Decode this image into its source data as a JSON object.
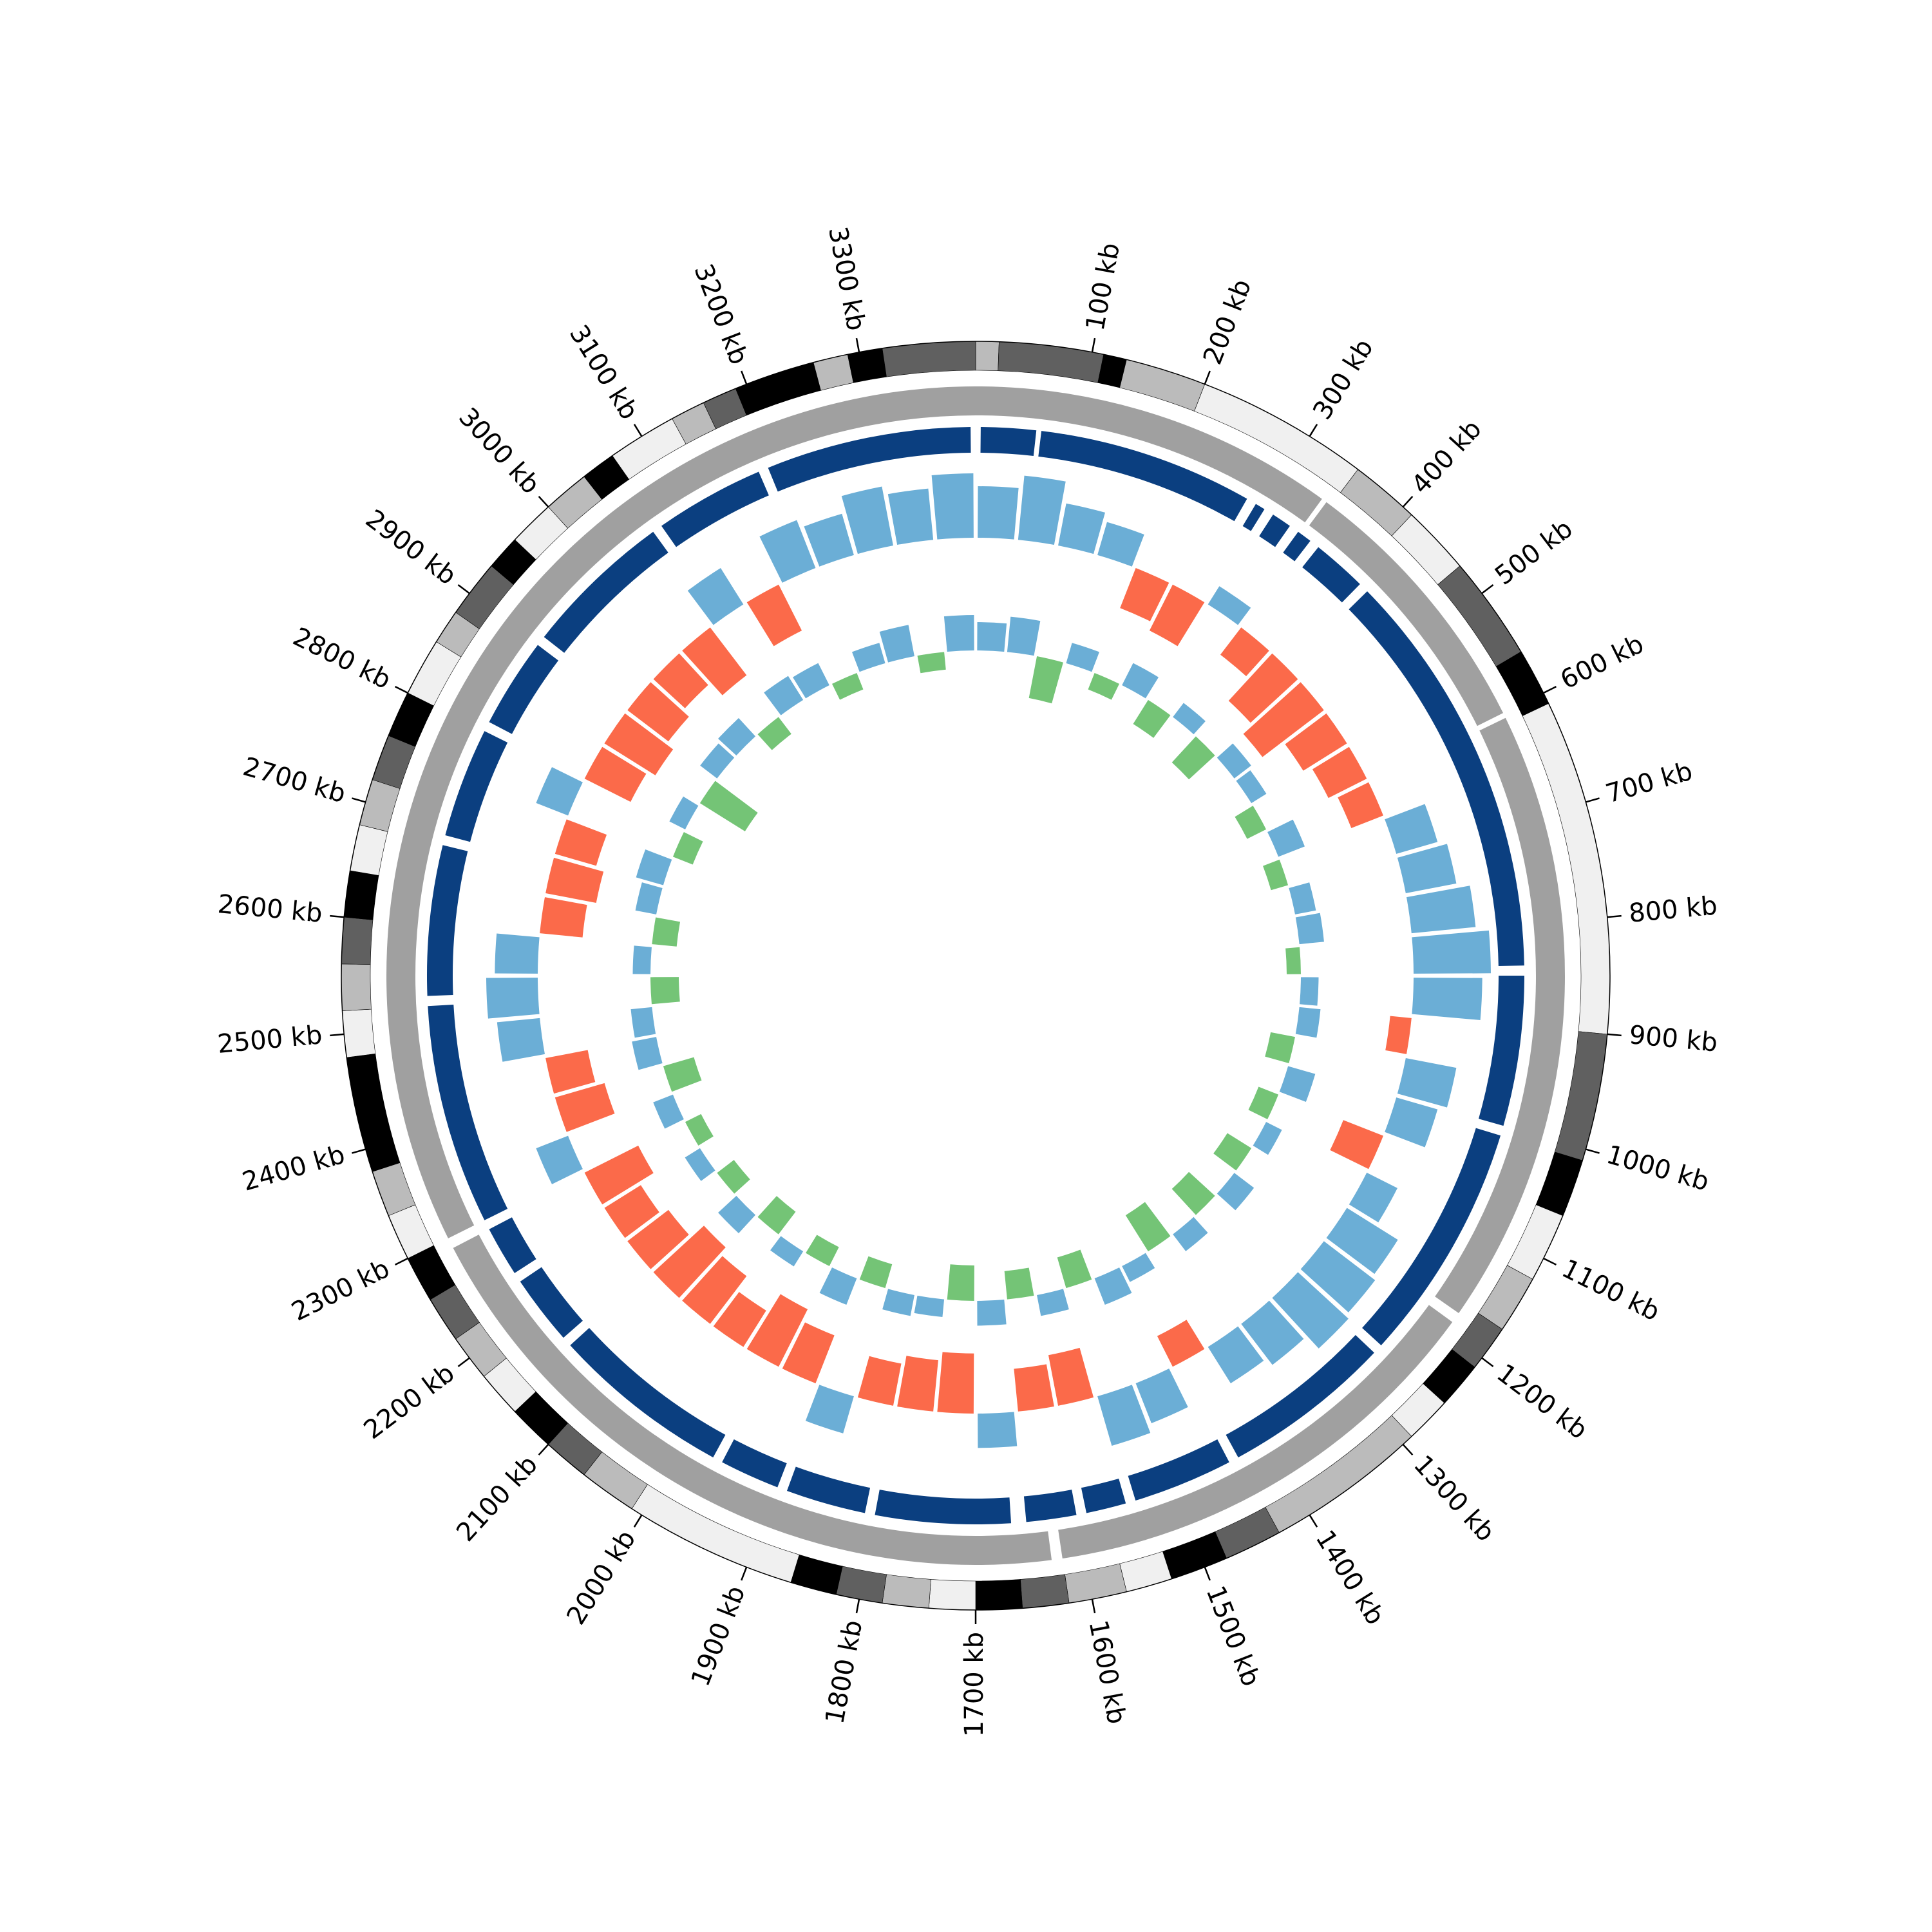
{
  "chart_data": {
    "type": "circos",
    "xlim": [
      0,
      3400
    ],
    "xticks": [
      {
        "value": 100,
        "label": "100 kb"
      },
      {
        "value": 200,
        "label": "200 kb"
      },
      {
        "value": 300,
        "label": "300 kb"
      },
      {
        "value": 400,
        "label": "400 kb"
      },
      {
        "value": 500,
        "label": "500 kb"
      },
      {
        "value": 600,
        "label": "600 kb"
      },
      {
        "value": 700,
        "label": "700 kb"
      },
      {
        "value": 800,
        "label": "800 kb"
      },
      {
        "value": 900,
        "label": "900 kb"
      },
      {
        "value": 1000,
        "label": "1000 kb"
      },
      {
        "value": 1100,
        "label": "1100 kb"
      },
      {
        "value": 1200,
        "label": "1200 kb"
      },
      {
        "value": 1300,
        "label": "1300 kb"
      },
      {
        "value": 1400,
        "label": "1400 kb"
      },
      {
        "value": 1500,
        "label": "1500 kb"
      },
      {
        "value": 1600,
        "label": "1600 kb"
      },
      {
        "value": 1700,
        "label": "1700 kb"
      },
      {
        "value": 1800,
        "label": "1800 kb"
      },
      {
        "value": 1900,
        "label": "1900 kb"
      },
      {
        "value": 2000,
        "label": "2000 kb"
      },
      {
        "value": 2100,
        "label": "2100 kb"
      },
      {
        "value": 2200,
        "label": "2200 kb"
      },
      {
        "value": 2300,
        "label": "2300 kb"
      },
      {
        "value": 2400,
        "label": "2400 kb"
      },
      {
        "value": 2500,
        "label": "2500 kb"
      },
      {
        "value": 2600,
        "label": "2600 kb"
      },
      {
        "value": 2700,
        "label": "2700 kb"
      },
      {
        "value": 2800,
        "label": "2800 kb"
      },
      {
        "value": 2900,
        "label": "2900 kb"
      },
      {
        "value": 3000,
        "label": "3000 kb"
      },
      {
        "value": 3100,
        "label": "3100 kb"
      },
      {
        "value": 3200,
        "label": "3200 kb"
      },
      {
        "value": 3300,
        "label": "3300 kb"
      }
    ],
    "bands": [
      [
        0,
        20,
        "#bbbbbb"
      ],
      [
        20,
        110,
        "#606060"
      ],
      [
        110,
        130,
        "#000000"
      ],
      [
        130,
        200,
        "#bbbbbb"
      ],
      [
        200,
        350,
        "#f0f0f0"
      ],
      [
        350,
        410,
        "#bbbbbb"
      ],
      [
        410,
        470,
        "#f0f0f0"
      ],
      [
        470,
        560,
        "#606060"
      ],
      [
        560,
        610,
        "#000000"
      ],
      [
        610,
        900,
        "#f0f0f0"
      ],
      [
        900,
        1010,
        "#606060"
      ],
      [
        1010,
        1060,
        "#000000"
      ],
      [
        1060,
        1120,
        "#f0f0f0"
      ],
      [
        1120,
        1170,
        "#bbbbbb"
      ],
      [
        1170,
        1210,
        "#606060"
      ],
      [
        1210,
        1250,
        "#000000"
      ],
      [
        1250,
        1290,
        "#f0f0f0"
      ],
      [
        1290,
        1430,
        "#bbbbbb"
      ],
      [
        1430,
        1480,
        "#606060"
      ],
      [
        1480,
        1530,
        "#000000"
      ],
      [
        1530,
        1570,
        "#f0f0f0"
      ],
      [
        1570,
        1620,
        "#bbbbbb"
      ],
      [
        1620,
        1660,
        "#606060"
      ],
      [
        1660,
        1700,
        "#000000"
      ],
      [
        1700,
        1740,
        "#f0f0f0"
      ],
      [
        1740,
        1780,
        "#bbbbbb"
      ],
      [
        1780,
        1820,
        "#606060"
      ],
      [
        1820,
        1860,
        "#000000"
      ],
      [
        1860,
        2010,
        "#f0f0f0"
      ],
      [
        2010,
        2060,
        "#bbbbbb"
      ],
      [
        2060,
        2100,
        "#606060"
      ],
      [
        2100,
        2140,
        "#000000"
      ],
      [
        2140,
        2180,
        "#f0f0f0"
      ],
      [
        2180,
        2220,
        "#bbbbbb"
      ],
      [
        2220,
        2260,
        "#606060"
      ],
      [
        2260,
        2300,
        "#000000"
      ],
      [
        2300,
        2340,
        "#f0f0f0"
      ],
      [
        2340,
        2380,
        "#bbbbbb"
      ],
      [
        2380,
        2480,
        "#000000"
      ],
      [
        2480,
        2520,
        "#f0f0f0"
      ],
      [
        2520,
        2560,
        "#bbbbbb"
      ],
      [
        2560,
        2600,
        "#606060"
      ],
      [
        2600,
        2640,
        "#000000"
      ],
      [
        2640,
        2680,
        "#f0f0f0"
      ],
      [
        2680,
        2720,
        "#bbbbbb"
      ],
      [
        2720,
        2760,
        "#606060"
      ],
      [
        2760,
        2800,
        "#000000"
      ],
      [
        2800,
        2850,
        "#f0f0f0"
      ],
      [
        2850,
        2880,
        "#bbbbbb"
      ],
      [
        2880,
        2930,
        "#606060"
      ],
      [
        2930,
        2960,
        "#000000"
      ],
      [
        2960,
        3000,
        "#f0f0f0"
      ],
      [
        3000,
        3040,
        "#bbbbbb"
      ],
      [
        3040,
        3070,
        "#000000"
      ],
      [
        3070,
        3130,
        "#f0f0f0"
      ],
      [
        3130,
        3160,
        "#bbbbbb"
      ],
      [
        3160,
        3190,
        "#606060"
      ],
      [
        3190,
        3260,
        "#000000"
      ],
      [
        3260,
        3290,
        "#bbbbbb"
      ],
      [
        3290,
        3320,
        "#000000"
      ],
      [
        3320,
        3400,
        "#606060"
      ]
    ],
    "gene_tracks": [
      {
        "color": "#a0a0a0",
        "intervals": [
          [
            0,
            340
          ],
          [
            345,
            600
          ],
          [
            605,
            1180
          ],
          [
            1190,
            1620
          ],
          [
            1630,
            2290
          ],
          [
            2300,
            3400
          ]
        ]
      },
      {
        "color": "#0b3f80",
        "intervals": [
          [
            5,
            60
          ],
          [
            65,
            280
          ],
          [
            290,
            300
          ],
          [
            310,
            330
          ],
          [
            340,
            355
          ],
          [
            365,
            420
          ],
          [
            430,
            840
          ],
          [
            850,
            1000
          ],
          [
            1010,
            1250
          ],
          [
            1260,
            1430
          ],
          [
            1440,
            1540
          ],
          [
            1550,
            1590
          ],
          [
            1600,
            1650
          ],
          [
            1665,
            1800
          ],
          [
            1810,
            1890
          ],
          [
            1900,
            1960
          ],
          [
            1970,
            2150
          ],
          [
            2160,
            2230
          ],
          [
            2240,
            2290
          ],
          [
            2300,
            2520
          ],
          [
            2530,
            2680
          ],
          [
            2690,
            2800
          ],
          [
            2810,
            2900
          ],
          [
            2910,
            3060
          ],
          [
            3070,
            3180
          ],
          [
            3190,
            3395
          ]
        ]
      }
    ],
    "x": [
      25,
      75,
      125,
      175,
      225,
      275,
      325,
      375,
      425,
      475,
      525,
      575,
      625,
      675,
      725,
      775,
      825,
      875,
      925,
      975,
      1025,
      1075,
      1125,
      1175,
      1225,
      1275,
      1325,
      1375,
      1425,
      1475,
      1525,
      1575,
      1625,
      1675,
      1725,
      1775,
      1825,
      1875,
      1925,
      1975,
      2025,
      2075,
      2125,
      2175,
      2225,
      2275,
      2325,
      2375,
      2425,
      2475,
      2525,
      2575,
      2625,
      2675,
      2725,
      2775,
      2825,
      2875,
      2925,
      2975,
      3025,
      3075,
      3125,
      3175,
      3225,
      3275,
      3325,
      3375
    ],
    "ylim": [
      -0.3,
      0.3
    ],
    "series": [
      {
        "pos_color": "#6baed6",
        "neg_color": "#fb6a4a",
        "values": [
          0.12,
          0.15,
          0.1,
          0.08,
          -0.1,
          -0.12,
          0.05,
          -0.08,
          -0.15,
          -0.18,
          -0.12,
          -0.1,
          -0.08,
          0.1,
          0.12,
          0.15,
          0.18,
          0.16,
          -0.05,
          0.12,
          0.1,
          -0.1,
          0.08,
          0.14,
          0.15,
          0.16,
          0.12,
          0.1,
          -0.08,
          0.1,
          0.12,
          -0.12,
          -0.1,
          0.08,
          -0.14,
          -0.12,
          -0.1,
          0.09,
          -0.12,
          -0.15,
          -0.1,
          -0.14,
          -0.16,
          -0.12,
          -0.1,
          -0.14,
          0.08,
          -0.12,
          -0.1,
          0.1,
          0.12,
          0.1,
          -0.1,
          -0.12,
          -0.1,
          0.08,
          -0.12,
          -0.14,
          -0.12,
          -0.1,
          -0.14,
          0.1,
          -0.12,
          0.12,
          0.1,
          0.14,
          0.12,
          0.15
        ]
      },
      {
        "pos_color": "#6baed6",
        "neg_color": "#74c476",
        "values": [
          0.08,
          0.1,
          -0.12,
          0.06,
          -0.05,
          0.07,
          -0.08,
          0.05,
          -0.1,
          0.06,
          0.05,
          -0.06,
          0.08,
          -0.05,
          0.06,
          0.07,
          -0.04,
          0.05,
          0.06,
          -0.07,
          0.08,
          -0.06,
          0.05,
          -0.08,
          0.07,
          -0.1,
          0.06,
          -0.12,
          0.05,
          0.08,
          -0.09,
          0.06,
          -0.08,
          0.07,
          -0.1,
          0.05,
          0.06,
          -0.07,
          0.08,
          -0.06,
          0.05,
          -0.08,
          0.07,
          -0.06,
          0.05,
          -0.05,
          0.06,
          -0.09,
          0.07,
          0.06,
          -0.08,
          0.05,
          -0.07,
          0.06,
          0.08,
          -0.06,
          0.05,
          -0.15,
          0.06,
          0.07,
          -0.06,
          0.08,
          0.07,
          -0.05,
          0.06,
          0.09,
          -0.05,
          0.1
        ]
      }
    ]
  }
}
